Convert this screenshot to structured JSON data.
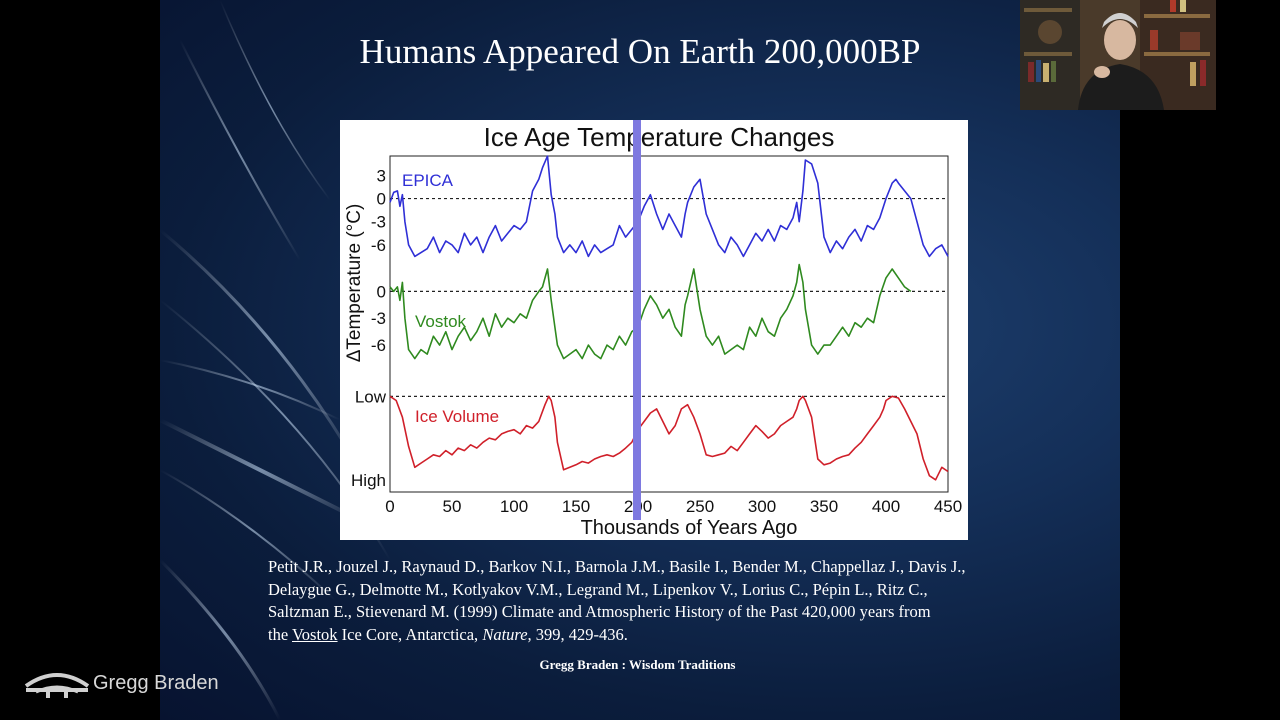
{
  "slide": {
    "title": "Humans Appeared On Earth 200,000BP",
    "citation": {
      "line1": "Petit J.R., Jouzel J., Raynaud D., Barkov N.I., Barnola J.M., Basile I., Bender M., Chappellaz J., Davis J.,",
      "line2": "Delaygue G., Delmotte M., Kotlyakov V.M., Legrand M., Lipenkov V., Lorius C., Pépin L., Ritz C.,",
      "line3": "Saltzman E., Stievenard M. (1999) Climate and Atmospheric History of the Past 420,000 years from",
      "line4_prefix": "the ",
      "line4_vostok": "Vostok",
      "line4_mid": " Ice Core, Antarctica, ",
      "line4_journal": "Nature",
      "line4_suffix": ", 399, 429-436."
    },
    "footer_credit": "Gregg Braden : Wisdom Traditions"
  },
  "branding": {
    "logo_text": "Gregg Braden",
    "logo_icon": "bridge-logo-icon"
  },
  "webcam": {
    "description_icon": "presenter-webcam"
  },
  "colors": {
    "epica": "#2f2fd6",
    "vostok": "#2f8a1f",
    "ice": "#d0202a",
    "marker": "#7e79e0",
    "slide_bg": "#142f58"
  },
  "chart_data": {
    "type": "line",
    "title": "Ice Age Temperature Changes",
    "xlabel": "Thousands of Years Ago",
    "ylabel": "ΔTemperature (°C)",
    "xlim": [
      0,
      450
    ],
    "x_ticks": [
      "0",
      "50",
      "100",
      "150",
      "200",
      "250",
      "300",
      "350",
      "400",
      "450"
    ],
    "marker_x": 200,
    "grid": false,
    "series": [
      {
        "name": "EPICA",
        "ylim": [
          -9,
          5
        ],
        "y_ticks": [
          "3",
          "0",
          "-3",
          "-6"
        ],
        "zero_line": 0,
        "x": [
          0,
          3,
          6,
          8,
          10,
          12,
          15,
          20,
          25,
          30,
          35,
          40,
          45,
          50,
          55,
          60,
          65,
          70,
          75,
          80,
          85,
          90,
          95,
          100,
          105,
          110,
          115,
          120,
          123,
          127,
          130,
          133,
          135,
          140,
          145,
          150,
          155,
          160,
          165,
          170,
          175,
          180,
          185,
          190,
          195,
          200,
          205,
          210,
          215,
          220,
          225,
          230,
          235,
          238,
          240,
          245,
          250,
          255,
          260,
          265,
          270,
          275,
          280,
          285,
          290,
          295,
          300,
          305,
          310,
          315,
          320,
          325,
          328,
          330,
          333,
          335,
          340,
          345,
          350,
          355,
          360,
          365,
          370,
          375,
          380,
          385,
          390,
          395,
          400,
          405,
          408,
          410,
          415,
          420,
          425,
          430,
          435,
          440,
          445,
          450
        ],
        "values": [
          -0.5,
          0.8,
          1,
          -1,
          0.5,
          -3,
          -6,
          -7.5,
          -7,
          -6.5,
          -5,
          -7,
          -5.5,
          -6,
          -7,
          -4.5,
          -6,
          -5,
          -7,
          -5,
          -3.5,
          -5.5,
          -4.5,
          -3.5,
          -4,
          -3,
          1,
          2.5,
          4,
          5.5,
          0.5,
          -2,
          -5,
          -7,
          -6,
          -7,
          -5.5,
          -7.5,
          -6,
          -7,
          -6.5,
          -6,
          -3.5,
          -5,
          -4,
          -3,
          -1,
          0.5,
          -2,
          -4,
          -2,
          -3.5,
          -5,
          -2,
          -0.5,
          1.5,
          2.5,
          -2,
          -4,
          -6,
          -7,
          -5,
          -6,
          -7.5,
          -6,
          -4.5,
          -5.5,
          -4,
          -5.5,
          -3.5,
          -4,
          -2.5,
          -0.5,
          -3,
          1,
          5,
          4.5,
          2,
          -5,
          -7,
          -5.5,
          -6.5,
          -5,
          -4,
          -5.5,
          -3.5,
          -4,
          -2.5,
          0,
          2,
          2.5,
          2,
          1,
          0,
          -3,
          -6,
          -7.5,
          -6.5,
          -6,
          -7.5
        ]
      },
      {
        "name": "Vostok",
        "ylim": [
          -9,
          3.5
        ],
        "y_ticks": [
          "0",
          "-3",
          "-6"
        ],
        "zero_line": 0,
        "x": [
          0,
          3,
          6,
          8,
          10,
          12,
          15,
          20,
          25,
          30,
          35,
          40,
          45,
          50,
          55,
          60,
          65,
          70,
          75,
          80,
          85,
          90,
          95,
          100,
          105,
          110,
          115,
          120,
          123,
          127,
          130,
          133,
          135,
          140,
          145,
          150,
          155,
          160,
          165,
          170,
          175,
          180,
          185,
          190,
          195,
          200,
          205,
          210,
          215,
          220,
          225,
          230,
          235,
          238,
          240,
          245,
          250,
          255,
          260,
          265,
          270,
          275,
          280,
          285,
          290,
          295,
          300,
          305,
          310,
          315,
          320,
          325,
          328,
          330,
          333,
          335,
          340,
          345,
          350,
          355,
          360,
          365,
          370,
          375,
          380,
          385,
          390,
          395,
          400,
          405,
          410,
          415,
          420
        ],
        "values": [
          0.5,
          0,
          0.5,
          -1,
          1,
          -3,
          -6.5,
          -7.5,
          -6.5,
          -7,
          -5,
          -6,
          -4.5,
          -6.5,
          -5,
          -4,
          -5.5,
          -4.5,
          -3,
          -5,
          -2.5,
          -4,
          -3,
          -3.5,
          -2.5,
          -3,
          -1,
          0,
          0.5,
          2.5,
          -1,
          -4,
          -6,
          -7.5,
          -7,
          -6.5,
          -7.5,
          -6,
          -7,
          -7.5,
          -6,
          -6.5,
          -5,
          -6,
          -4.5,
          -4,
          -2,
          -0.5,
          -1.5,
          -3,
          -2,
          -4,
          -5,
          -1.5,
          -0.5,
          2.5,
          -2,
          -5,
          -6,
          -5,
          -7,
          -6.5,
          -6,
          -6.5,
          -4,
          -5,
          -3,
          -4.5,
          -5,
          -3,
          -2,
          -0.5,
          1,
          3,
          1,
          -2,
          -6,
          -7,
          -6,
          -6,
          -5,
          -4,
          -5,
          -3.5,
          -4,
          -3,
          -3.5,
          -0.5,
          1.5,
          2.5,
          1.5,
          0.5,
          0
        ]
      },
      {
        "name": "Ice Volume",
        "ylim": [
          1.05,
          -0.1
        ],
        "y_ticks": [
          "Low",
          "High"
        ],
        "y_tick_values": [
          0,
          1
        ],
        "zero_line": 0,
        "x": [
          0,
          5,
          10,
          15,
          20,
          25,
          30,
          35,
          40,
          45,
          50,
          55,
          60,
          65,
          70,
          75,
          80,
          85,
          90,
          95,
          100,
          105,
          110,
          115,
          120,
          125,
          128,
          130,
          133,
          135,
          140,
          145,
          150,
          155,
          160,
          165,
          170,
          175,
          180,
          185,
          190,
          195,
          200,
          205,
          210,
          215,
          220,
          225,
          230,
          235,
          240,
          245,
          250,
          255,
          260,
          265,
          270,
          275,
          280,
          285,
          290,
          295,
          300,
          305,
          310,
          315,
          320,
          325,
          328,
          330,
          333,
          335,
          340,
          345,
          350,
          355,
          360,
          365,
          370,
          375,
          380,
          385,
          390,
          395,
          398,
          400,
          405,
          410,
          415,
          420,
          425,
          430,
          435,
          440,
          445,
          450
        ],
        "values": [
          0,
          0.05,
          0.25,
          0.6,
          0.85,
          0.8,
          0.75,
          0.7,
          0.72,
          0.65,
          0.7,
          0.62,
          0.65,
          0.58,
          0.62,
          0.55,
          0.5,
          0.52,
          0.45,
          0.42,
          0.4,
          0.45,
          0.35,
          0.38,
          0.3,
          0.1,
          0,
          0.05,
          0.25,
          0.55,
          0.88,
          0.85,
          0.82,
          0.78,
          0.8,
          0.75,
          0.72,
          0.7,
          0.72,
          0.68,
          0.62,
          0.55,
          0.4,
          0.3,
          0.2,
          0.15,
          0.3,
          0.45,
          0.35,
          0.15,
          0.1,
          0.25,
          0.45,
          0.7,
          0.72,
          0.7,
          0.68,
          0.6,
          0.65,
          0.55,
          0.45,
          0.35,
          0.42,
          0.5,
          0.45,
          0.35,
          0.3,
          0.25,
          0.15,
          0.05,
          0,
          0.05,
          0.25,
          0.75,
          0.82,
          0.8,
          0.75,
          0.72,
          0.7,
          0.62,
          0.55,
          0.45,
          0.35,
          0.25,
          0.15,
          0.05,
          0,
          0.02,
          0.15,
          0.3,
          0.45,
          0.75,
          0.95,
          1,
          0.85,
          0.9
        ]
      }
    ]
  }
}
